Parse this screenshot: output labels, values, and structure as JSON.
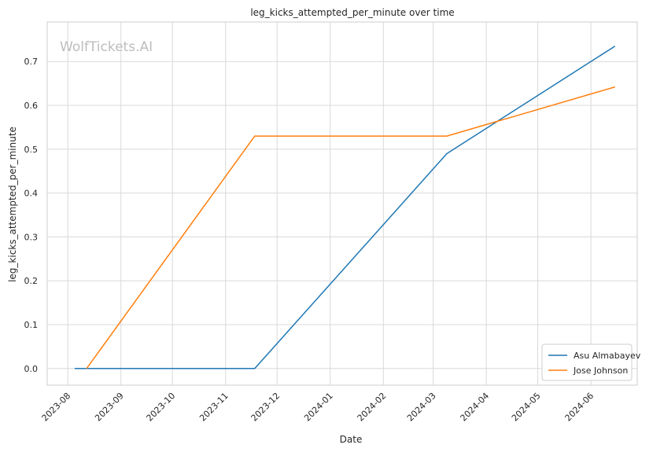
{
  "watermark": "WolfTickets.AI",
  "chart_data": {
    "type": "line",
    "title": "leg_kicks_attempted_per_minute over time",
    "xlabel": "Date",
    "ylabel": "leg_kicks_attempted_per_minute",
    "x_ticks": [
      "2023-08",
      "2023-09",
      "2023-10",
      "2023-11",
      "2023-12",
      "2024-01",
      "2024-02",
      "2024-03",
      "2024-04",
      "2024-05",
      "2024-06"
    ],
    "y_ticks": [
      "0.0",
      "0.1",
      "0.2",
      "0.3",
      "0.4",
      "0.5",
      "0.6",
      "0.7"
    ],
    "xlim": [
      "2023-07-20",
      "2024-06-28"
    ],
    "ylim": [
      -0.038,
      0.79
    ],
    "grid": true,
    "legend_position": "lower-right",
    "series": [
      {
        "name": "Asu Almabayev",
        "color": "#1f77b4",
        "points": [
          {
            "x": "2023-08-05",
            "y": 0.0
          },
          {
            "x": "2023-11-18",
            "y": 0.0
          },
          {
            "x": "2024-03-09",
            "y": 0.49
          },
          {
            "x": "2024-06-15",
            "y": 0.735
          }
        ]
      },
      {
        "name": "Jose Johnson",
        "color": "#ff7f0e",
        "points": [
          {
            "x": "2023-08-12",
            "y": 0.0
          },
          {
            "x": "2023-11-18",
            "y": 0.53
          },
          {
            "x": "2024-03-09",
            "y": 0.53
          },
          {
            "x": "2024-06-15",
            "y": 0.642
          }
        ]
      }
    ]
  }
}
